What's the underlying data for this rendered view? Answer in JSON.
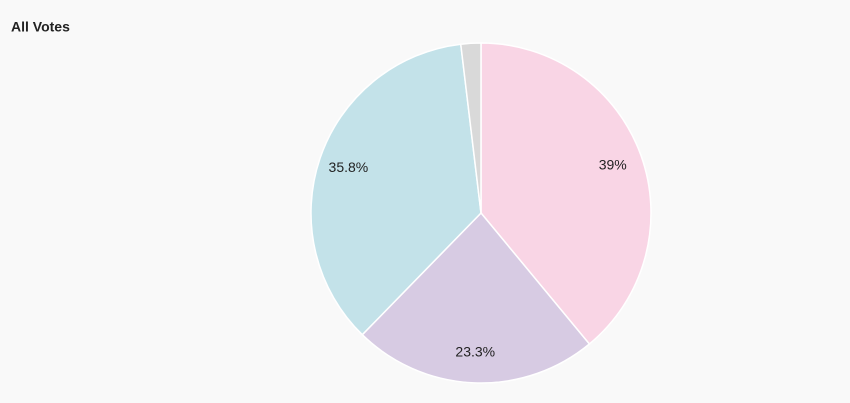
{
  "chart_data": {
    "type": "pie",
    "title": "All Votes",
    "values": [
      39,
      23.3,
      35.8,
      1.9
    ],
    "value_labels": [
      "39%",
      "23.3%",
      "35.8%",
      null
    ],
    "colors": [
      "#f9d5e5",
      "#d7cbe3",
      "#c3e2e9",
      "#d9d9d9"
    ]
  }
}
